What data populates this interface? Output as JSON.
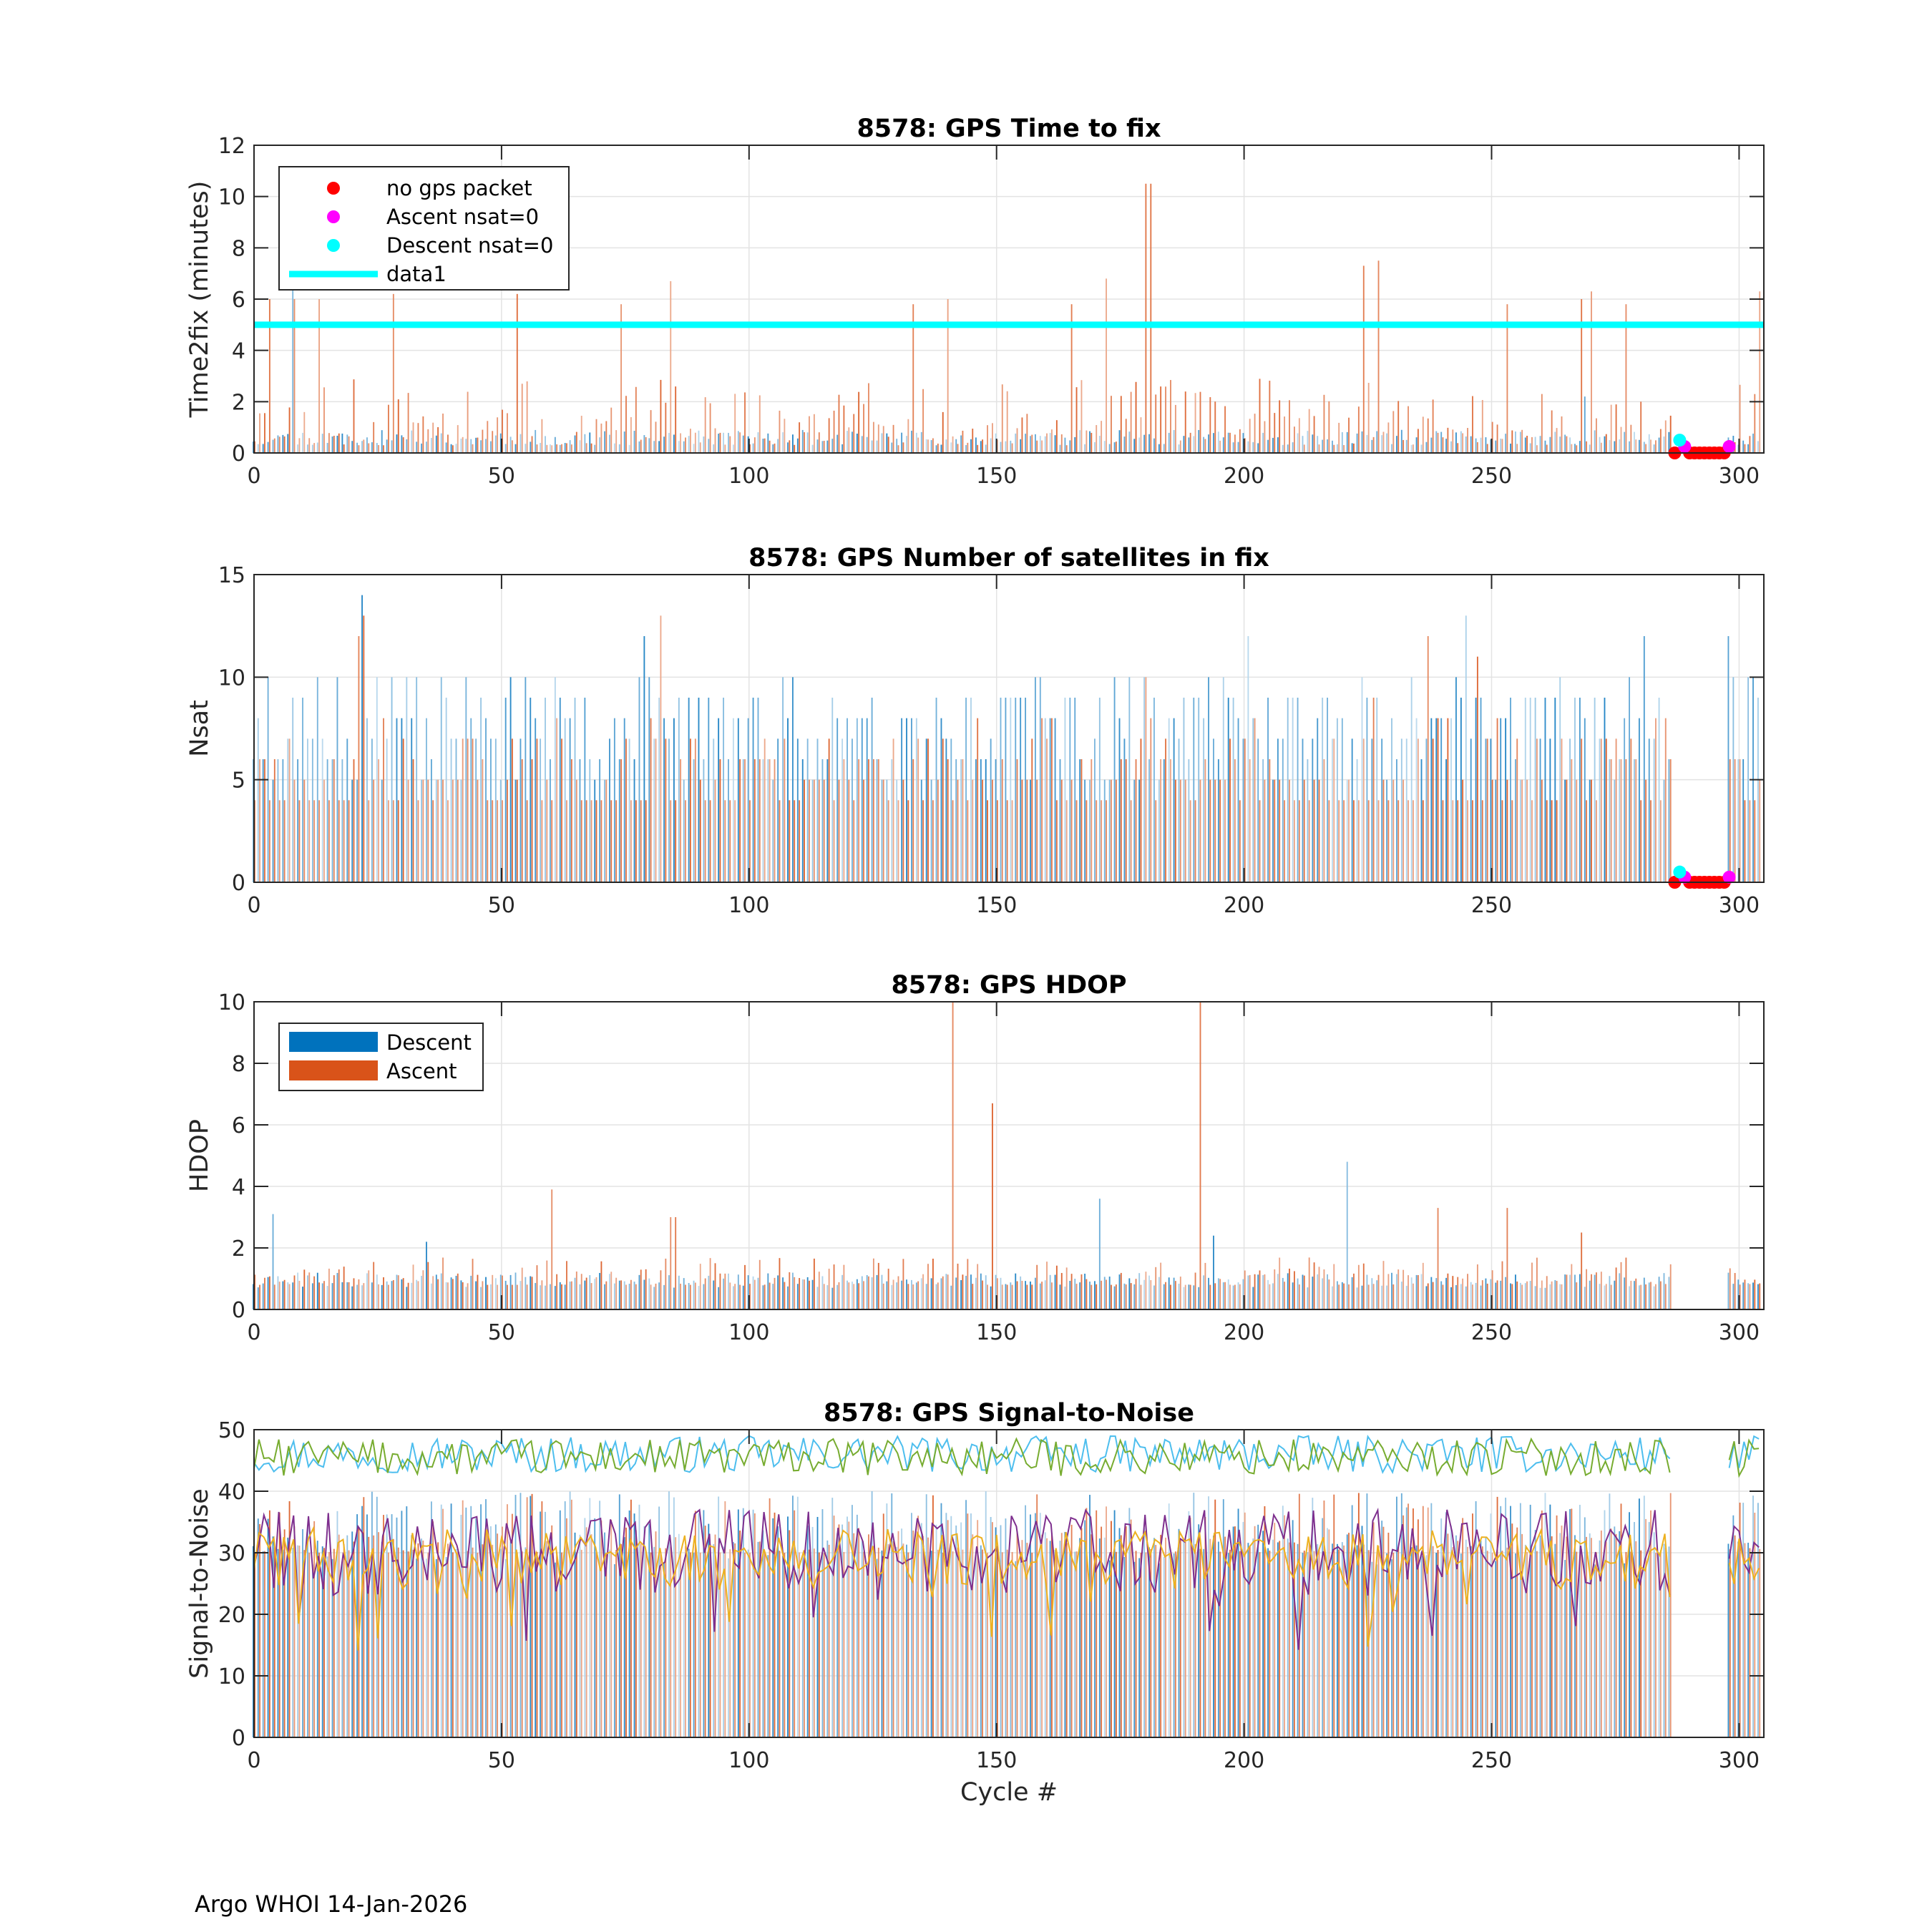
{
  "footer": "Argo WHOI 14-Jan-2026",
  "colors": {
    "descent": "#0072BD",
    "ascent": "#D95319",
    "no_packet": "#FF0000",
    "ascent_nsat0": "#FF00FF",
    "descent_nsat0": "#00FFFF",
    "limit_line": "#00FFFF",
    "snr_lines": [
      "#4DBEEE",
      "#77AC30",
      "#7E2F8E",
      "#EDB120"
    ]
  },
  "chart_data": [
    {
      "id": "time2fix",
      "type": "bar",
      "title": "8578: GPS Time to fix",
      "xlabel": "",
      "ylabel": "Time2fix (minutes)",
      "xlim": [
        0,
        305
      ],
      "ylim": [
        0,
        12
      ],
      "xticks": [
        0,
        50,
        100,
        150,
        200,
        250,
        300
      ],
      "yticks": [
        0,
        2,
        4,
        6,
        8,
        10,
        12
      ],
      "grid": true,
      "legend": {
        "location": "top-left",
        "entries": [
          "no gps packet",
          "Ascent nsat=0",
          "Descent nsat=0",
          "data1"
        ]
      },
      "data1_line": {
        "y": 5
      },
      "bar_cycles": [
        0,
        304
      ],
      "missing_cycles": [
        287,
        297
      ],
      "series_profile": {
        "descent_base": 0.3,
        "descent_spread": 0.6,
        "ascent_base": 0.3,
        "ascent_spread": 2.6,
        "ascent_spikes": [
          [
            3,
            6.0
          ],
          [
            8,
            6.0
          ],
          [
            13,
            6.0
          ],
          [
            28,
            6.2
          ],
          [
            53,
            6.2
          ],
          [
            74,
            5.8
          ],
          [
            84,
            6.7
          ],
          [
            133,
            5.8
          ],
          [
            140,
            6.0
          ],
          [
            165,
            5.8
          ],
          [
            172,
            6.8
          ],
          [
            180,
            10.5
          ],
          [
            181,
            10.5
          ],
          [
            224,
            7.3
          ],
          [
            227,
            7.5
          ],
          [
            253,
            5.8
          ],
          [
            268,
            6.0
          ],
          [
            270,
            6.3
          ],
          [
            277,
            5.8
          ],
          [
            304,
            6.3
          ]
        ],
        "descent_spikes": [
          [
            8,
            6.5
          ],
          [
            269,
            2.2
          ]
        ]
      },
      "markers": {
        "no gps packet": {
          "x": [
            287,
            290,
            291,
            292,
            293,
            294,
            295,
            296,
            297
          ],
          "y": [
            0,
            0,
            0,
            0,
            0,
            0,
            0,
            0,
            0
          ]
        },
        "Ascent nsat=0": {
          "x": [
            289,
            298
          ],
          "y": [
            0.25,
            0.25
          ]
        },
        "Descent nsat=0": {
          "x": [
            288
          ],
          "y": [
            0.5
          ]
        }
      }
    },
    {
      "id": "nsat",
      "type": "bar",
      "title": "8578: GPS Number of satellites in fix",
      "xlabel": "",
      "ylabel": "Nsat",
      "xlim": [
        0,
        305
      ],
      "ylim": [
        0,
        15
      ],
      "xticks": [
        0,
        50,
        100,
        150,
        200,
        250,
        300
      ],
      "yticks": [
        0,
        5,
        10,
        15
      ],
      "grid": true,
      "bar_cycles": [
        0,
        304
      ],
      "missing_cycles": [
        287,
        297
      ],
      "series_profile": {
        "descent_base": 5,
        "descent_spread": 5,
        "ascent_base": 4,
        "ascent_spread": 4,
        "ascent_spikes": [
          [
            21,
            12
          ],
          [
            22,
            13
          ],
          [
            82,
            13
          ],
          [
            180,
            10
          ],
          [
            226,
            9
          ],
          [
            237,
            12
          ],
          [
            247,
            11
          ],
          [
            299,
            6
          ],
          [
            300,
            6
          ]
        ],
        "descent_spikes": [
          [
            22,
            14
          ],
          [
            79,
            12
          ],
          [
            201,
            12
          ],
          [
            245,
            13
          ],
          [
            281,
            12
          ],
          [
            298,
            12
          ],
          [
            302,
            10
          ],
          [
            303,
            10
          ]
        ]
      },
      "markers": {
        "no gps packet": {
          "x": [
            287,
            290,
            291,
            292,
            293,
            294,
            295,
            296,
            297
          ],
          "y": [
            0,
            0,
            0,
            0,
            0,
            0,
            0,
            0,
            0
          ]
        },
        "Ascent nsat=0": {
          "x": [
            289,
            298
          ],
          "y": [
            0.25,
            0.25
          ]
        },
        "Descent nsat=0": {
          "x": [
            288
          ],
          "y": [
            0.5
          ]
        }
      }
    },
    {
      "id": "hdop",
      "type": "bar",
      "title": "8578: GPS HDOP",
      "xlabel": "",
      "ylabel": "HDOP",
      "xlim": [
        0,
        305
      ],
      "ylim": [
        0,
        10
      ],
      "xticks": [
        0,
        50,
        100,
        150,
        200,
        250,
        300
      ],
      "yticks": [
        0,
        2,
        4,
        6,
        8,
        10
      ],
      "grid": true,
      "legend": {
        "location": "top-left",
        "entries": [
          "Descent",
          "Ascent"
        ]
      },
      "bar_cycles": [
        0,
        304
      ],
      "missing_cycles": [
        287,
        297
      ],
      "series_profile": {
        "descent_base": 0.7,
        "descent_spread": 0.5,
        "ascent_base": 0.8,
        "ascent_spread": 0.9,
        "ascent_spikes": [
          [
            60,
            3.9
          ],
          [
            84,
            3.0
          ],
          [
            85,
            3.0
          ],
          [
            141,
            10
          ],
          [
            149,
            6.7
          ],
          [
            191,
            10
          ],
          [
            239,
            3.3
          ],
          [
            253,
            3.3
          ],
          [
            268,
            2.5
          ]
        ],
        "descent_spikes": [
          [
            4,
            3.1
          ],
          [
            35,
            2.2
          ],
          [
            171,
            3.6
          ],
          [
            194,
            2.4
          ],
          [
            221,
            4.8
          ]
        ]
      }
    },
    {
      "id": "snr",
      "type": "bar+line",
      "title": "8578: GPS Signal-to-Noise",
      "xlabel": "Cycle #",
      "ylabel": "Signal-to-Noise",
      "xlim": [
        0,
        305
      ],
      "ylim": [
        0,
        50
      ],
      "xticks": [
        0,
        50,
        100,
        150,
        200,
        250,
        300
      ],
      "yticks": [
        0,
        10,
        20,
        30,
        40,
        50
      ],
      "grid": true,
      "bar_cycles": [
        0,
        286
      ],
      "extra_cycles": [
        298,
        304
      ],
      "bar_profile": {
        "descent_base": 28,
        "descent_spread": 12,
        "ascent_base": 30,
        "ascent_spread": 10
      },
      "lines": [
        {
          "name": "max-descent",
          "mean": 46,
          "amp": 3
        },
        {
          "name": "max-ascent",
          "mean": 45.5,
          "amp": 3
        },
        {
          "name": "mean-descent",
          "mean": 30,
          "amp": 7
        },
        {
          "name": "mean-ascent",
          "mean": 29,
          "amp": 5
        }
      ]
    }
  ]
}
